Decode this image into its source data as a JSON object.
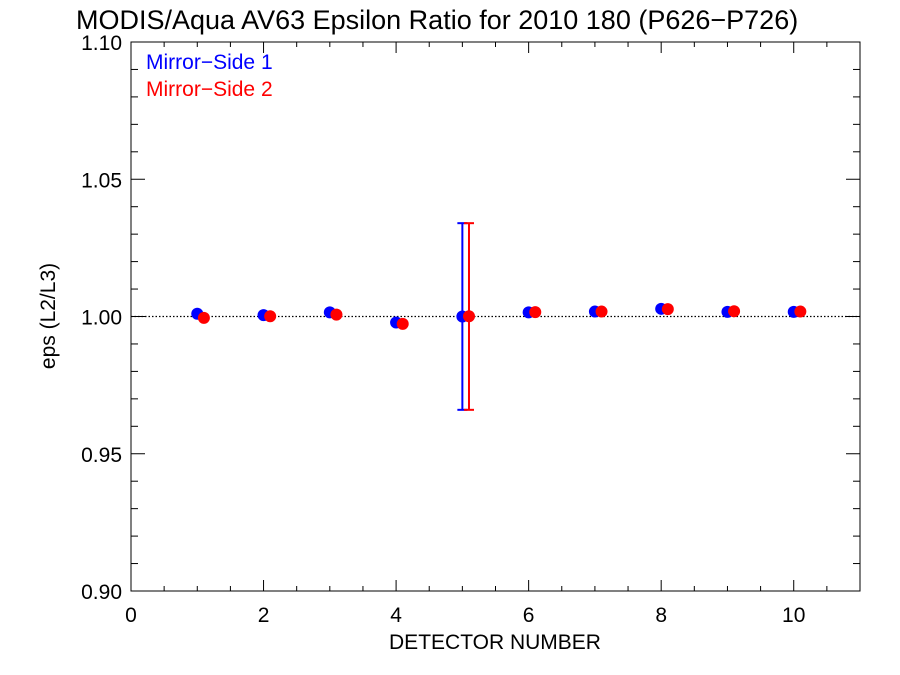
{
  "chart_data": {
    "type": "scatter",
    "title": "MODIS/Aqua AV63 Epsilon Ratio for 2010 180 (P626−P726)",
    "xlabel": "DETECTOR NUMBER",
    "ylabel": "eps (L2/L3)",
    "xlim": [
      0,
      11
    ],
    "ylim": [
      0.9,
      1.1
    ],
    "x_ticks": [
      0,
      2,
      4,
      6,
      8,
      10
    ],
    "x_tick_labels": [
      "0",
      "2",
      "4",
      "6",
      "8",
      "10"
    ],
    "y_ticks": [
      0.9,
      0.95,
      1.0,
      1.05,
      1.1
    ],
    "y_tick_labels": [
      "0.90",
      "0.95",
      "1.00",
      "1.05",
      "1.10"
    ],
    "reference_line": 1.0,
    "legend_position": "top-left",
    "grid": false,
    "series": [
      {
        "name": "Mirror−Side 1",
        "color": "#0000ff",
        "x": [
          1,
          2,
          3,
          4,
          5,
          6,
          7,
          8,
          9,
          10
        ],
        "values": [
          1.001,
          1.0005,
          1.0015,
          0.9978,
          1.0,
          1.0015,
          1.0018,
          1.0028,
          1.0017,
          1.0017
        ],
        "error_bars": [
          null,
          null,
          null,
          null,
          [
            0.966,
            1.034
          ],
          null,
          null,
          null,
          null,
          null
        ]
      },
      {
        "name": "Mirror−Side 2",
        "color": "#ff0000",
        "x": [
          1.1,
          2.1,
          3.1,
          4.1,
          5.1,
          6.1,
          7.1,
          8.1,
          9.1,
          10.1
        ],
        "values": [
          0.9995,
          1.0001,
          1.0007,
          0.9973,
          1.0001,
          1.0016,
          1.0018,
          1.0027,
          1.0019,
          1.0018
        ],
        "error_bars": [
          null,
          null,
          null,
          null,
          [
            0.966,
            1.034
          ],
          null,
          null,
          null,
          null,
          null
        ]
      }
    ]
  }
}
